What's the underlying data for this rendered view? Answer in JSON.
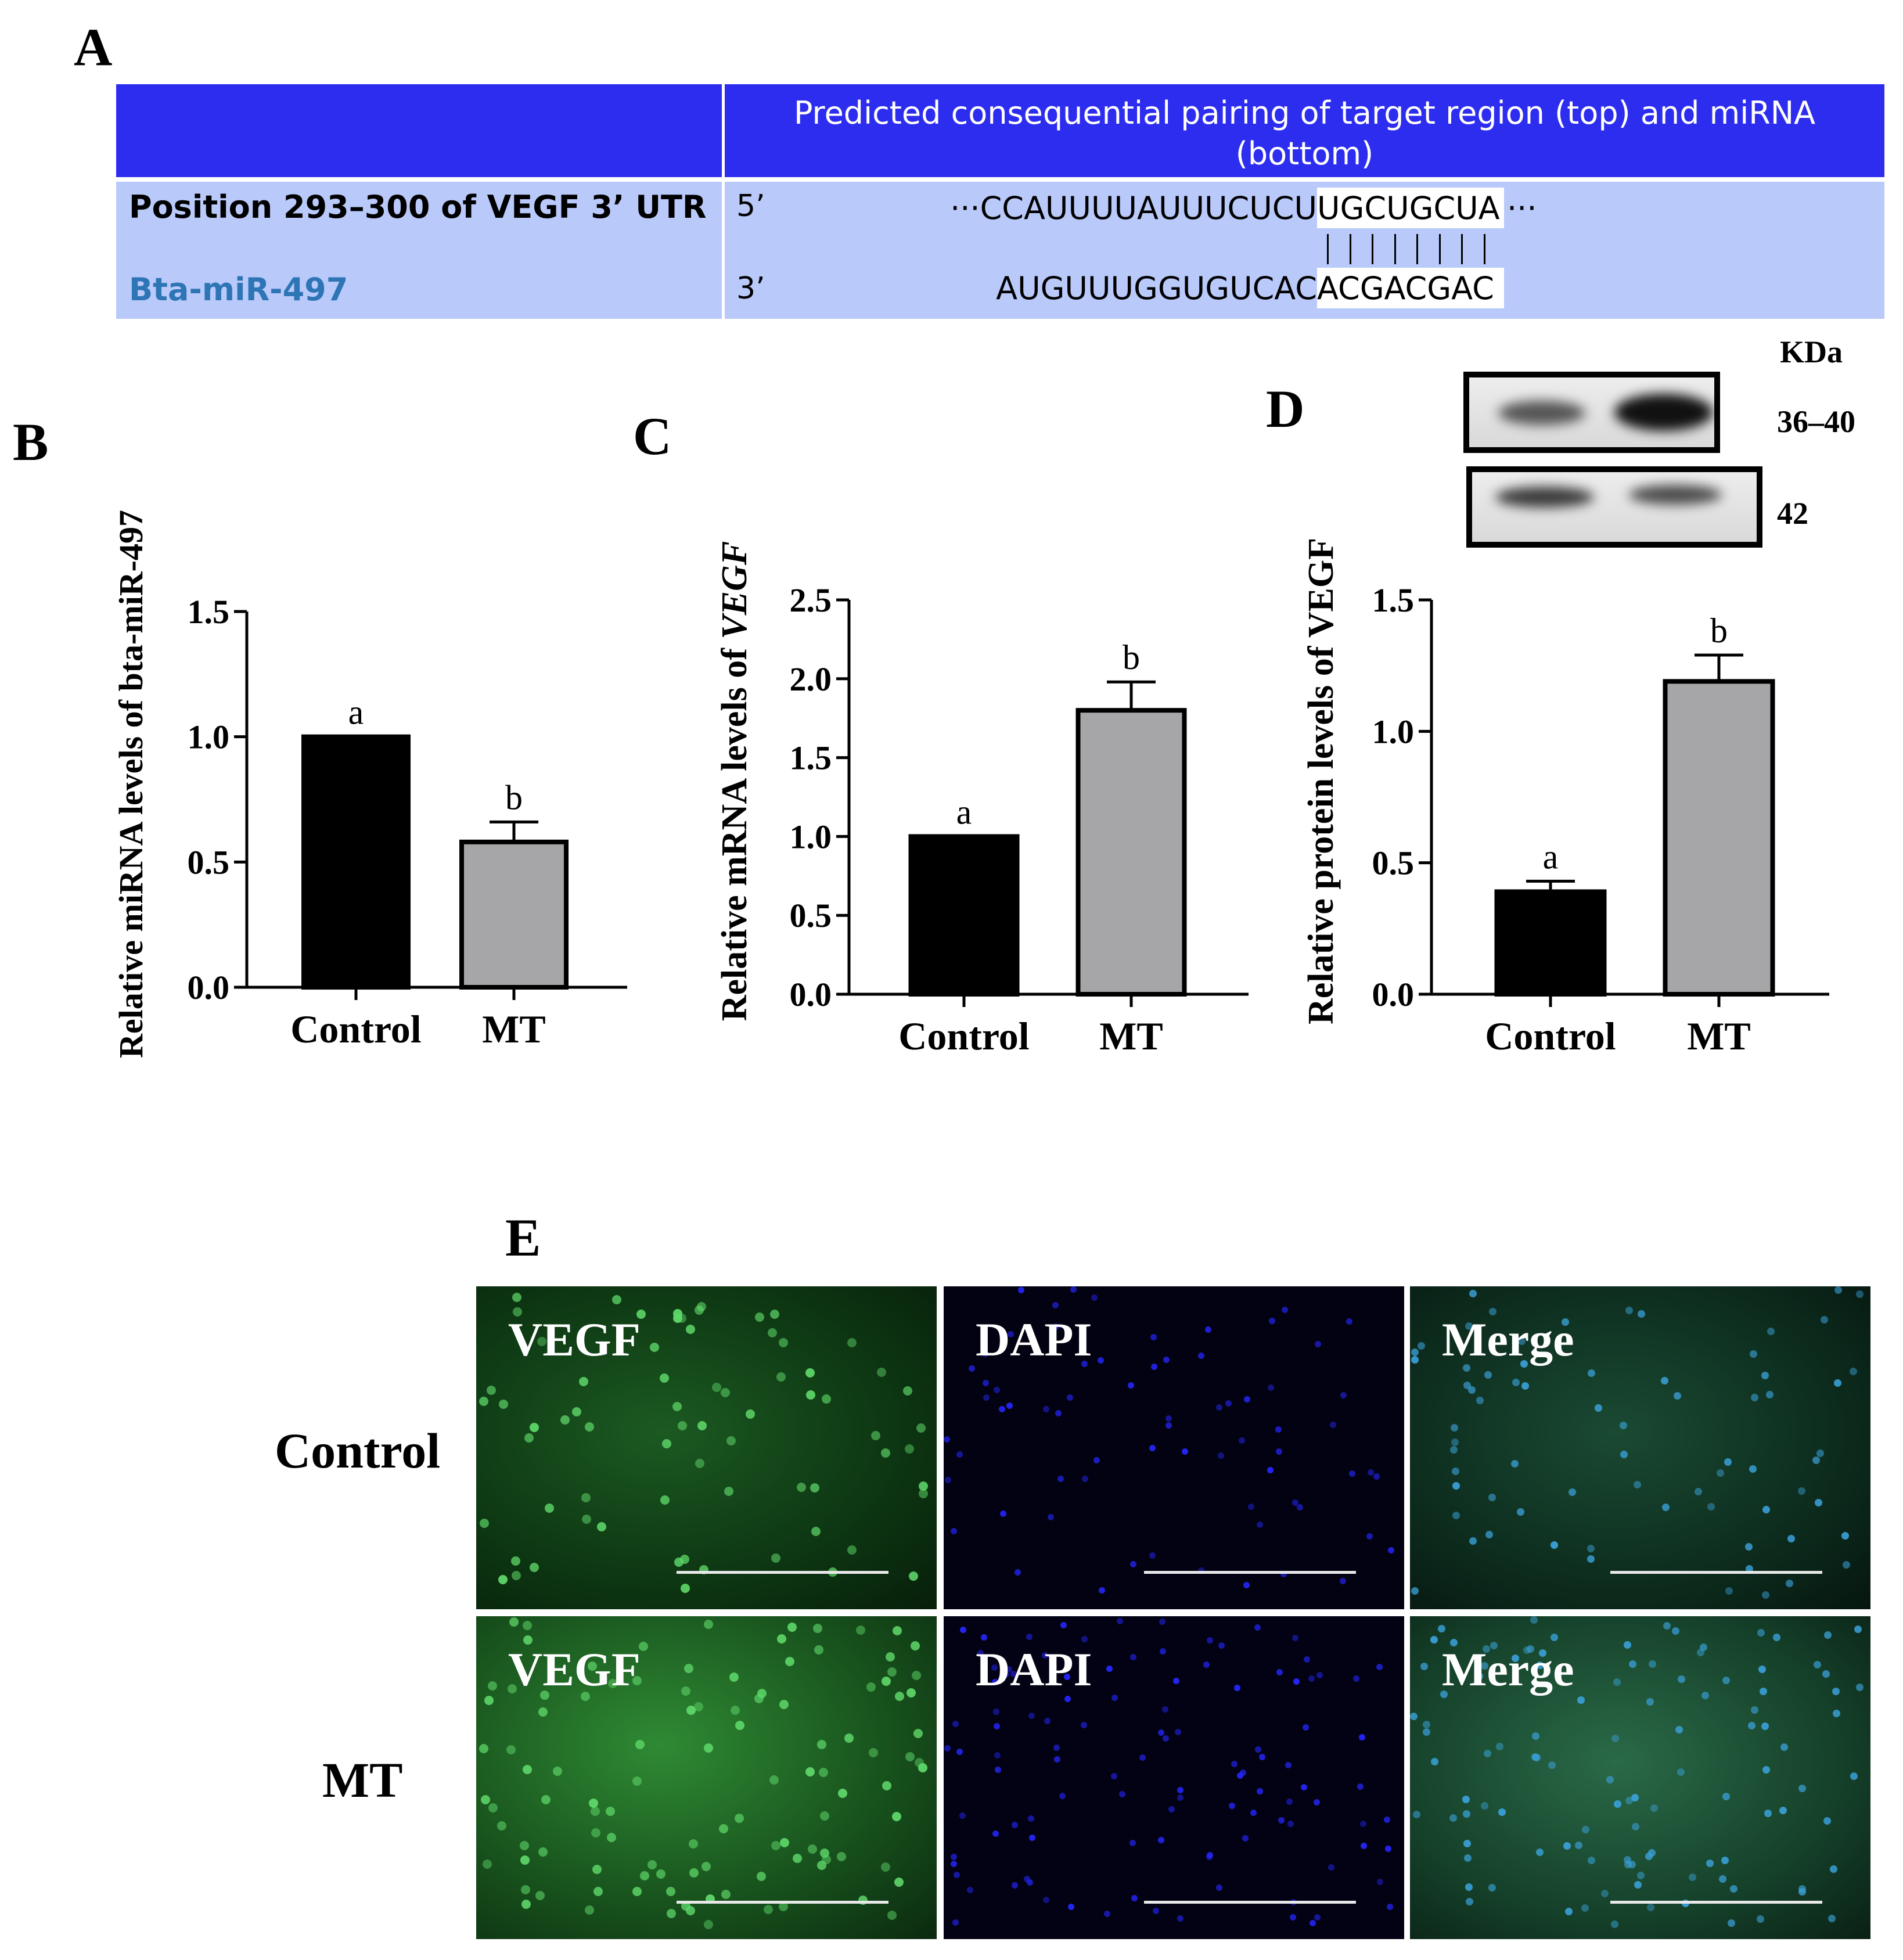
{
  "panels": {
    "a": "A",
    "b": "B",
    "c": "C",
    "d": "D",
    "e": "E"
  },
  "colors": {
    "header_bg": "#2d2df0",
    "row_bg": "#b9c9fa",
    "mirna_label": "#2e75b6",
    "bar_control": "#000000",
    "bar_mt": "#a6a6a8"
  },
  "table": {
    "header": "Predicted consequential pairing of target region (top) and miRNA (bottom)",
    "row1_label": "Position 293–300 of VEGF 3’ UTR",
    "row2_label": "Bta-miR-497",
    "prime5": "5’",
    "prime3": "3’",
    "target_prefix": "···CCAUUUUAUUUCUCU",
    "target_seed": "UGCUGCUA",
    "target_suffix": "···",
    "mirna_prefix": "AUGUUUGGUGUCAC",
    "mirna_seed": "ACGACGAC",
    "pair_count": 8
  },
  "chart_data": [
    {
      "type": "bar",
      "panel": "B",
      "categories": [
        "Control",
        "MT"
      ],
      "values": [
        1.0,
        0.58
      ],
      "errors": [
        0,
        0.08
      ],
      "letters": [
        "a",
        "b"
      ],
      "ylabel": "Relative miRNA levels of bta-miR-497",
      "ylim": [
        0,
        1.5
      ],
      "yticks": [
        "0.0",
        "0.5",
        "1.0",
        "1.5"
      ],
      "xlabel": ""
    },
    {
      "type": "bar",
      "panel": "C",
      "categories": [
        "Control",
        "MT"
      ],
      "values": [
        1.0,
        1.8
      ],
      "errors": [
        0,
        0.18
      ],
      "letters": [
        "a",
        "b"
      ],
      "ylabel_prefix": "Relative mRNA levels of ",
      "ylabel_italic": "VEGF",
      "ylim": [
        0,
        2.5
      ],
      "yticks": [
        "0.0",
        "0.5",
        "1.0",
        "1.5",
        "2.0",
        "2.5"
      ],
      "xlabel": ""
    },
    {
      "type": "bar",
      "panel": "D",
      "categories": [
        "Control",
        "MT"
      ],
      "values": [
        0.39,
        1.19
      ],
      "errors": [
        0.04,
        0.1
      ],
      "letters": [
        "a",
        "b"
      ],
      "ylabel": "Relative protein levels of VEGF",
      "ylim": [
        0,
        1.5
      ],
      "yticks": [
        "0.0",
        "0.5",
        "1.0",
        "1.5"
      ],
      "xlabel": ""
    }
  ],
  "blot": {
    "unit": "KDa",
    "size1": "36–40",
    "size2": "42"
  },
  "micrographs": {
    "rows": [
      "Control",
      "MT"
    ],
    "columns": [
      "VEGF",
      "DAPI",
      "Merge"
    ]
  }
}
